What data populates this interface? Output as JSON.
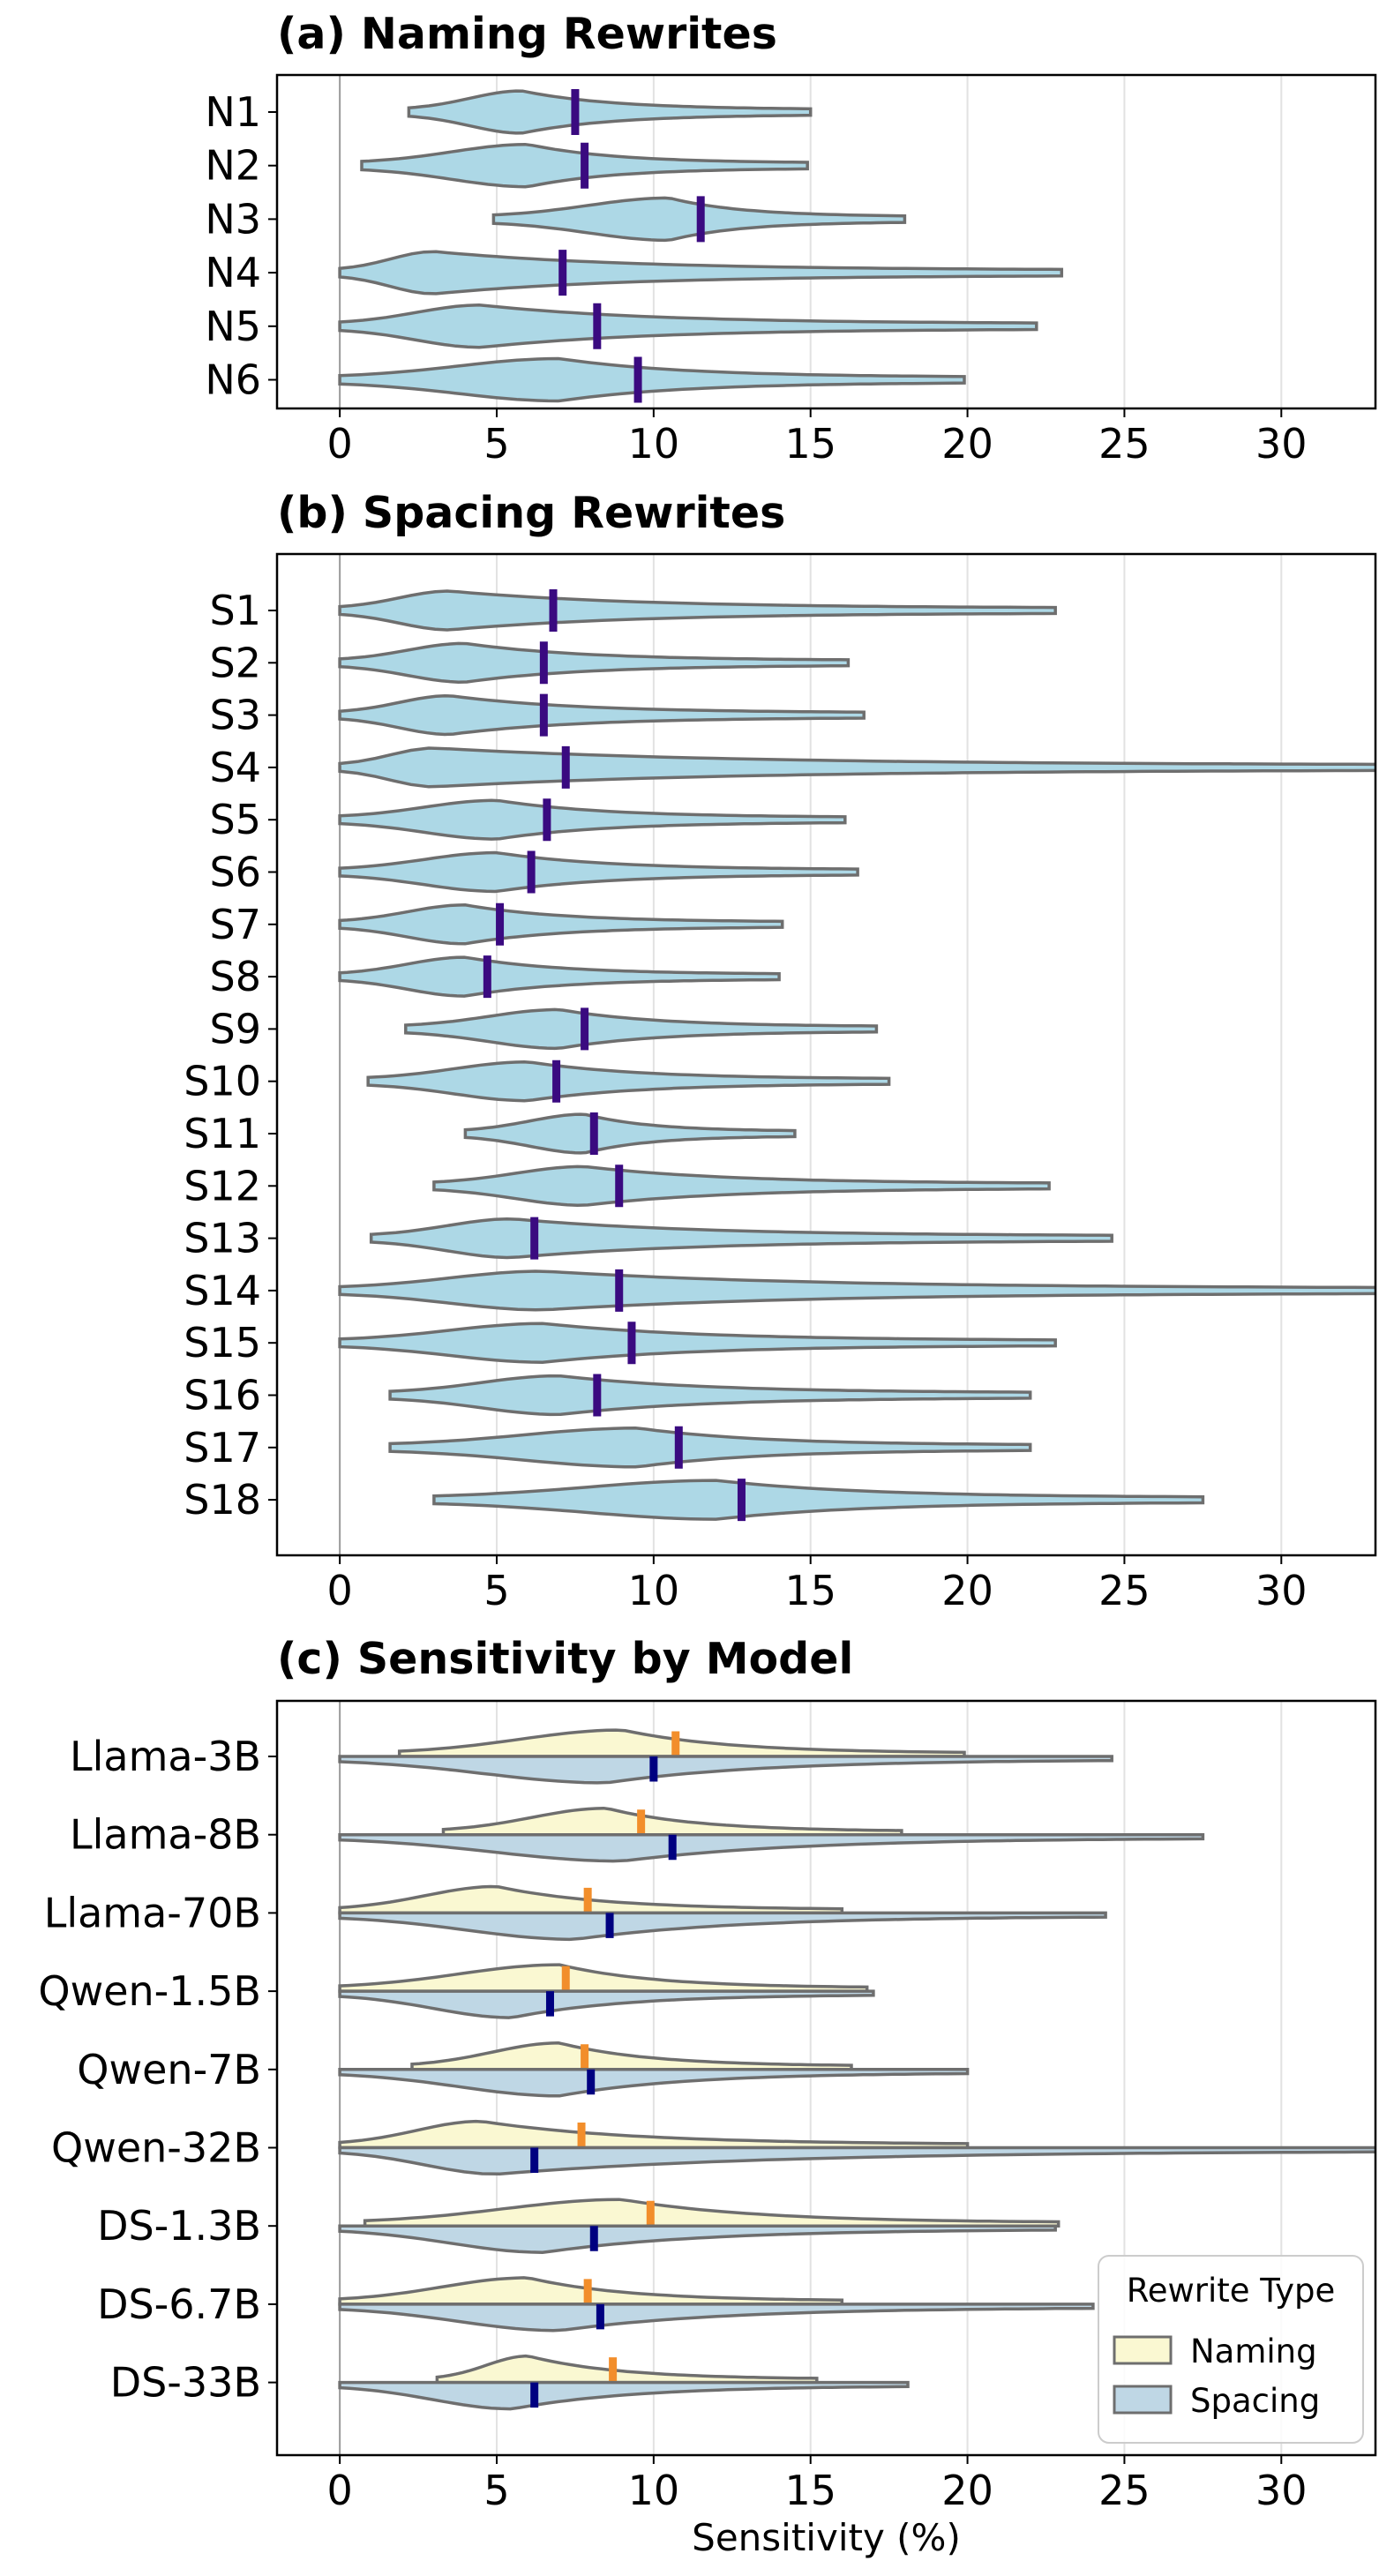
{
  "chart_data": [
    {
      "type": "violin",
      "title": "(a) Naming Rewrites",
      "xlabel": "",
      "xlim": [
        -2,
        33
      ],
      "xticks": [
        "0",
        "5",
        "10",
        "15",
        "20",
        "25",
        "30"
      ],
      "grid": "vertical",
      "categories": [
        "N1",
        "N2",
        "N3",
        "N4",
        "N5",
        "N6"
      ],
      "medians": [
        7.5,
        7.8,
        11.5,
        7.1,
        8.2,
        9.5
      ],
      "min": [
        2.2,
        0.7,
        4.9,
        0.0,
        0.0,
        0.0
      ],
      "max": [
        15.0,
        14.9,
        18.0,
        23.0,
        22.2,
        19.9
      ],
      "modes": [
        5.8,
        6.0,
        10.5,
        3.0,
        4.5,
        7.0
      ]
    },
    {
      "type": "violin",
      "title": "(b) Spacing Rewrites",
      "xlabel": "",
      "xlim": [
        -2,
        33
      ],
      "xticks": [
        "0",
        "5",
        "10",
        "15",
        "20",
        "25",
        "30"
      ],
      "grid": "vertical",
      "categories": [
        "S1",
        "S2",
        "S3",
        "S4",
        "S5",
        "S6",
        "S7",
        "S8",
        "S9",
        "S10",
        "S11",
        "S12",
        "S13",
        "S14",
        "S15",
        "S16",
        "S17",
        "S18"
      ],
      "medians": [
        6.8,
        6.5,
        6.5,
        7.2,
        6.6,
        6.1,
        5.1,
        4.7,
        7.8,
        6.9,
        8.1,
        8.9,
        6.2,
        8.9,
        9.3,
        8.2,
        10.8,
        12.8
      ],
      "min": [
        0.0,
        0.0,
        0.0,
        0.0,
        0.0,
        0.0,
        0.0,
        0.0,
        2.1,
        0.9,
        4.0,
        3.0,
        1.0,
        0.0,
        0.0,
        1.6,
        1.6,
        3.0
      ],
      "max": [
        22.8,
        16.2,
        16.7,
        34.0,
        16.1,
        16.5,
        14.1,
        14.0,
        17.1,
        17.5,
        14.5,
        22.6,
        24.6,
        34.0,
        22.8,
        22.0,
        22.0,
        27.5
      ],
      "modes": [
        3.5,
        4.0,
        3.5,
        3.0,
        5.0,
        5.0,
        4.0,
        4.0,
        7.0,
        6.0,
        7.8,
        7.8,
        5.5,
        6.5,
        6.5,
        7.0,
        9.5,
        12.0
      ]
    },
    {
      "type": "split-violin",
      "title": "(c) Sensitivity by Model",
      "xlabel": "Sensitivity (%)",
      "xlim": [
        -2,
        33
      ],
      "xticks": [
        "0",
        "5",
        "10",
        "15",
        "20",
        "25",
        "30"
      ],
      "grid": "vertical",
      "categories": [
        "Llama-3B",
        "Llama-8B",
        "Llama-70B",
        "Qwen-1.5B",
        "Qwen-7B",
        "Qwen-32B",
        "DS-1.3B",
        "DS-6.7B",
        "DS-33B"
      ],
      "legend": {
        "title": "Rewrite Type",
        "placement": "bottom-right"
      },
      "series": [
        {
          "name": "Naming",
          "color": "#faf8d2",
          "median_color": "#f28e2b",
          "medians": [
            10.7,
            9.6,
            7.9,
            7.2,
            7.8,
            7.7,
            9.9,
            7.9,
            8.7
          ],
          "min": [
            1.9,
            3.3,
            0.0,
            0.0,
            2.3,
            0.0,
            0.8,
            0.0,
            3.1
          ],
          "max": [
            19.9,
            17.9,
            16.0,
            16.8,
            16.3,
            20.0,
            22.9,
            16.0,
            15.2
          ],
          "modes": [
            9.0,
            8.5,
            5.0,
            7.0,
            7.0,
            4.5,
            9.0,
            6.0,
            6.0
          ]
        },
        {
          "name": "Spacing",
          "color": "#bfd7e5",
          "median_color": "#000080",
          "medians": [
            10.0,
            10.6,
            8.6,
            6.7,
            8.0,
            6.2,
            8.1,
            8.3,
            6.2
          ],
          "min": [
            0.0,
            0.0,
            0.0,
            0.0,
            0.0,
            0.0,
            0.0,
            0.0,
            0.0
          ],
          "max": [
            24.6,
            27.5,
            24.4,
            17.0,
            20.0,
            34.0,
            22.8,
            24.0,
            18.1
          ],
          "modes": [
            8.5,
            9.0,
            7.5,
            5.5,
            7.0,
            5.0,
            6.5,
            7.0,
            5.5
          ]
        }
      ]
    }
  ]
}
